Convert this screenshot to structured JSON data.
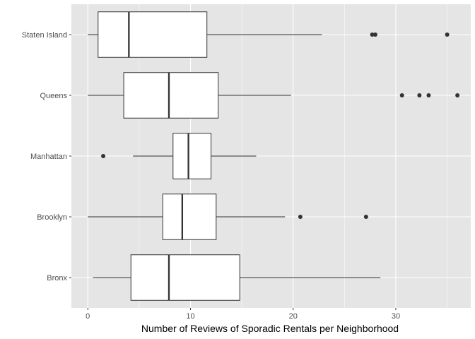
{
  "chart_data": {
    "type": "boxplot",
    "orientation": "horizontal",
    "xlabel": "Number of Reviews of Sporadic Rentals per Neighborhood",
    "ylabel": "",
    "xlim": [
      -1.6,
      37.3
    ],
    "x_ticks": [
      0,
      10,
      20,
      30
    ],
    "grid": true,
    "categories": [
      "Staten Island",
      "Queens",
      "Manhattan",
      "Brooklyn",
      "Bronx"
    ],
    "boxes": [
      {
        "name": "Staten Island",
        "whisker_low": 0.0,
        "q1": 1.0,
        "median": 4.0,
        "q3": 11.6,
        "whisker_high": 22.8,
        "outliers": [
          27.7,
          28.0,
          35.0
        ]
      },
      {
        "name": "Queens",
        "whisker_low": 0.0,
        "q1": 3.5,
        "median": 7.9,
        "q3": 12.7,
        "whisker_high": 19.8,
        "outliers": [
          30.6,
          32.3,
          33.2,
          36.0
        ]
      },
      {
        "name": "Manhattan",
        "whisker_low": 4.4,
        "q1": 8.3,
        "median": 9.8,
        "q3": 12.0,
        "whisker_high": 16.4,
        "outliers": [
          1.5
        ]
      },
      {
        "name": "Brooklyn",
        "whisker_low": 0.0,
        "q1": 7.3,
        "median": 9.2,
        "q3": 12.5,
        "whisker_high": 19.2,
        "outliers": [
          20.7,
          27.1
        ]
      },
      {
        "name": "Bronx",
        "whisker_low": 0.5,
        "q1": 4.2,
        "median": 7.9,
        "q3": 14.8,
        "whisker_high": 28.5,
        "outliers": []
      }
    ],
    "colors": {
      "panel_background": "#e5e5e5",
      "grid": "#ffffff",
      "box_fill": "#ffffff",
      "box_stroke": "#333333",
      "outlier": "#333333"
    }
  }
}
